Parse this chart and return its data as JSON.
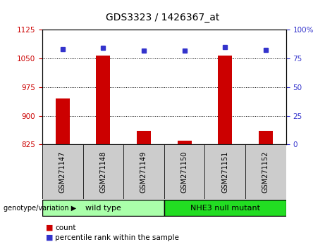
{
  "title": "GDS3323 / 1426367_at",
  "samples": [
    "GSM271147",
    "GSM271148",
    "GSM271149",
    "GSM271150",
    "GSM271151",
    "GSM271152"
  ],
  "counts": [
    945,
    1058,
    860,
    835,
    1058,
    860
  ],
  "percentile_ranks": [
    83,
    84.5,
    82,
    82,
    85,
    82.5
  ],
  "ylim_left": [
    825,
    1125
  ],
  "ylim_right": [
    0,
    100
  ],
  "yticks_left": [
    825,
    900,
    975,
    1050,
    1125
  ],
  "yticks_right": [
    0,
    25,
    50,
    75,
    100
  ],
  "bar_color": "#cc0000",
  "dot_color": "#3333cc",
  "groups": [
    {
      "label": "wild type",
      "indices": [
        0,
        1,
        2
      ],
      "color": "#aaffaa"
    },
    {
      "label": "NHE3 null mutant",
      "indices": [
        3,
        4,
        5
      ],
      "color": "#22dd22"
    }
  ],
  "group_label": "genotype/variation",
  "legend_count_label": "count",
  "legend_pct_label": "percentile rank within the sample",
  "sample_box_color": "#cccccc",
  "bar_width": 0.35,
  "figsize": [
    4.61,
    3.54
  ],
  "dpi": 100
}
